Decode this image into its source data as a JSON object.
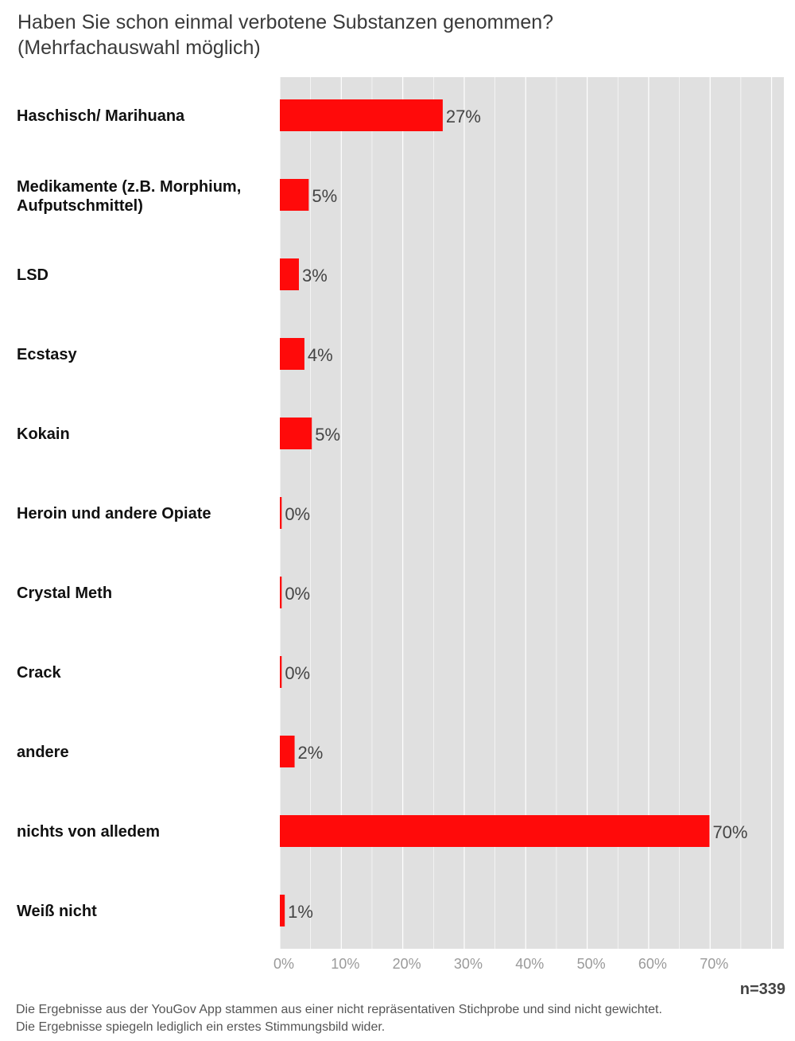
{
  "chart_data": {
    "type": "bar",
    "orientation": "horizontal",
    "title_lines": [
      "Haben Sie schon einmal verbotene Substanzen genommen?",
      "(Mehrfachauswahl möglich)"
    ],
    "categories": [
      [
        "Haschisch/ Marihuana"
      ],
      [
        "Medikamente (z.B. Morphium,",
        "Aufputschmittel)"
      ],
      [
        "LSD"
      ],
      [
        "Ecstasy"
      ],
      [
        "Kokain"
      ],
      [
        "Heroin und andere Opiate"
      ],
      [
        "Crystal Meth"
      ],
      [
        "Crack"
      ],
      [
        "andere"
      ],
      [
        "nichts von alledem"
      ],
      [
        "Weiß nicht"
      ]
    ],
    "values": [
      26.5,
      4.7,
      3.1,
      4.0,
      5.2,
      0.3,
      0.3,
      0.3,
      2.4,
      69.9,
      0.8
    ],
    "value_labels": [
      "27%",
      "5%",
      "3%",
      "4%",
      "5%",
      "0%",
      "0%",
      "0%",
      "2%",
      "70%",
      "1%"
    ],
    "x_ticks": [
      0,
      10,
      20,
      30,
      40,
      50,
      60,
      70
    ],
    "x_tick_labels": [
      "0%",
      "10%",
      "20%",
      "30%",
      "40%",
      "50%",
      "60%",
      "70%"
    ],
    "xlim": [
      0,
      82
    ],
    "grid": true,
    "sample_size": "n=339",
    "bar_color": "#ff0a0a",
    "background_color": "#e0e0e0"
  },
  "footer": {
    "line1": "Die Ergebnisse aus der YouGov App stammen aus einer nicht repräsentativen Stichprobe und sind nicht gewichtet.",
    "line2": "Die Ergebnisse spiegeln lediglich ein erstes Stimmungsbild wider."
  }
}
